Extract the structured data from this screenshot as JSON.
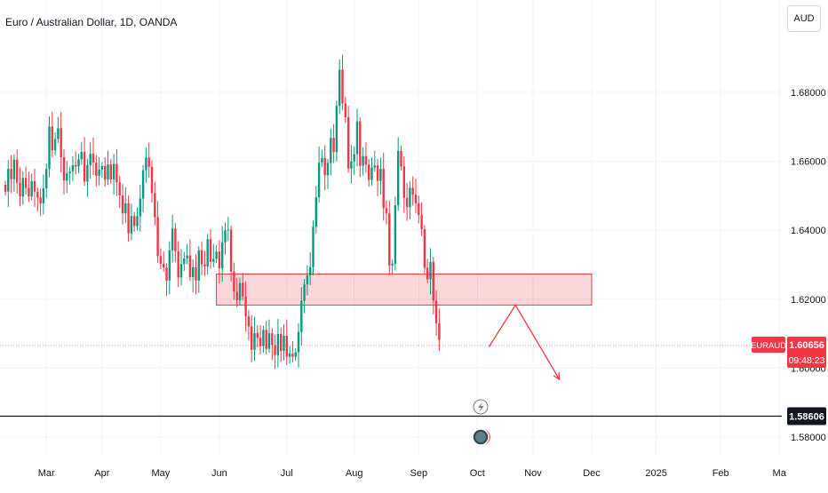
{
  "chart_data": {
    "type": "candlestick",
    "title": "Euro / Australian Dollar, 1D, OANDA",
    "currency": "AUD",
    "ylim": [
      1.575,
      1.712
    ],
    "yticks": [
      "1.68000",
      "1.66000",
      "1.64000",
      "1.62000",
      "1.60000",
      "1.58000"
    ],
    "ytick_values": [
      1.68,
      1.66,
      1.64,
      1.62,
      1.6,
      1.58
    ],
    "xticks": [
      "Mar",
      "Apr",
      "May",
      "Jun",
      "Jul",
      "Aug",
      "Sep",
      "Oct",
      "Nov",
      "Dec",
      "2025",
      "Feb",
      "Ma"
    ],
    "xtick_bar_index": [
      14,
      33,
      53,
      73,
      96,
      119,
      141,
      161,
      180,
      200,
      222,
      244,
      264
    ],
    "series": [
      {
        "values": [
          1.6512,
          1.6578,
          1.6548,
          1.6605,
          1.6538,
          1.6498,
          1.6552,
          1.6523,
          1.6498,
          1.6542,
          1.6512,
          1.6495,
          1.6478,
          1.6522,
          1.6578,
          1.6701,
          1.6632,
          1.6665,
          1.6696,
          1.6612,
          1.6544,
          1.6565,
          1.6571,
          1.6589,
          1.6585,
          1.6606,
          1.6627,
          1.6541,
          1.6589,
          1.6622,
          1.6596,
          1.6558,
          1.6576,
          1.6586,
          1.6547,
          1.6591,
          1.6547,
          1.6592,
          1.6539,
          1.6501,
          1.6449,
          1.6478,
          1.6391,
          1.6441,
          1.6412,
          1.6441,
          1.6492,
          1.6574,
          1.6611,
          1.6584,
          1.6508,
          1.6438,
          1.6325,
          1.6303,
          1.6292,
          1.6254,
          1.6342,
          1.6405,
          1.6339,
          1.6263,
          1.6302,
          1.6318,
          1.6327,
          1.6264,
          1.6293,
          1.6254,
          1.6342,
          1.6301,
          1.6295,
          1.6374,
          1.6308,
          1.6317,
          1.6338,
          1.629,
          1.6365,
          1.64,
          1.6402,
          1.628,
          1.6222,
          1.6197,
          1.6247,
          1.6208,
          1.615,
          1.6121,
          1.6053,
          1.6102,
          1.6088,
          1.6064,
          1.6111,
          1.6056,
          1.6101,
          1.6067,
          1.6038,
          1.6099,
          1.605,
          1.6094,
          1.6033,
          1.6042,
          1.6033,
          1.6046,
          1.6105,
          1.6195,
          1.6243,
          1.6269,
          1.6293,
          1.641,
          1.6496,
          1.6596,
          1.661,
          1.656,
          1.6595,
          1.6668,
          1.6627,
          1.6761,
          1.6866,
          1.6768,
          1.6728,
          1.6579,
          1.66,
          1.6621,
          1.6716,
          1.6587,
          1.6615,
          1.6591,
          1.6546,
          1.6582,
          1.6588,
          1.6543,
          1.6578,
          1.6464,
          1.6449,
          1.6298,
          1.6303,
          1.6472,
          1.663,
          1.6585,
          1.6494,
          1.6467,
          1.6523,
          1.6503,
          1.6478,
          1.6444,
          1.6403,
          1.6291,
          1.6258,
          1.6308,
          1.6196,
          1.613,
          1.6082
        ]
      }
    ],
    "price_label": {
      "symbol": "EURAUD",
      "price": "1.60656",
      "countdown": "09:48:23",
      "value": 1.60656
    },
    "hline": {
      "label": "1.58606",
      "value": 1.58606
    },
    "zone": {
      "from": 1.6183,
      "to": 1.6273,
      "start_index": 72,
      "end_index": 200
    },
    "projection": [
      {
        "index": 165,
        "value": 1.6062
      },
      {
        "index": 174,
        "value": 1.6183
      },
      {
        "index": 189,
        "value": 1.5967
      }
    ]
  }
}
